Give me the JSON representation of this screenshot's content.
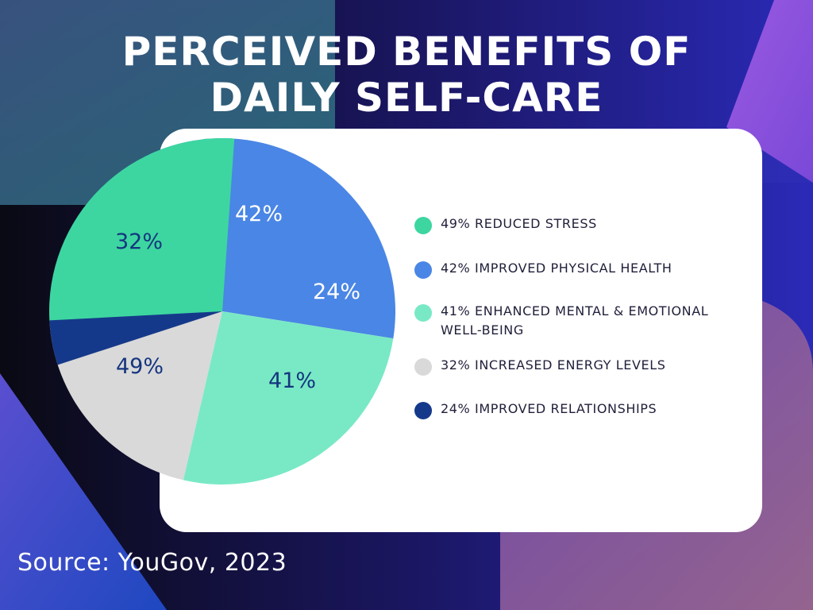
{
  "title": {
    "line1": "PERCEIVED BENEFITS OF",
    "line2": "DAILY SELF-CARE"
  },
  "source": "Source: YouGov, 2023",
  "colors": {
    "reduced_stress": "#3dd6a0",
    "physical_health": "#4a86e5",
    "mental_wellbeing": "#79e9c5",
    "energy": "#d9d9d9",
    "relationships": "#15398a",
    "label_dark": "#15357f",
    "label_light": "#ffffff"
  },
  "chart_data": {
    "type": "pie",
    "title": "PERCEIVED BENEFITS OF DAILY SELF-CARE",
    "slices": [
      {
        "label": "Reduced stress",
        "value": 49,
        "value_label": "49%",
        "color": "#3dd6a0",
        "label_color": "#15357f"
      },
      {
        "label": "Improved physical health",
        "value": 42,
        "value_label": "42%",
        "color": "#4a86e5",
        "label_color": "#ffffff"
      },
      {
        "label": "Enhanced mental & emotional well-being",
        "value": 41,
        "value_label": "41%",
        "color": "#79e9c5",
        "label_color": "#15357f"
      },
      {
        "label": "Increased energy levels",
        "value": 32,
        "value_label": "32%",
        "color": "#d9d9d9",
        "label_color": "#15357f"
      },
      {
        "label": "Improved relationships",
        "value": 24,
        "value_label": "24%",
        "color": "#15398a",
        "label_color": "#ffffff"
      }
    ],
    "legend": [
      {
        "text": "49%  REDUCED STRESS",
        "color": "#3dd6a0"
      },
      {
        "text": "42% IMPROVED PHYSICAL HEALTH",
        "color": "#4a86e5"
      },
      {
        "text": "41% ENHANCED MENTAL & EMOTIONAL WELL-BEING",
        "color": "#79e9c5"
      },
      {
        "text": "32% INCREASED ENERGY LEVELS",
        "color": "#d9d9d9"
      },
      {
        "text": "24% IMPROVED RELATIONSHIPS",
        "color": "#15398a"
      }
    ],
    "legend_position": "right"
  }
}
